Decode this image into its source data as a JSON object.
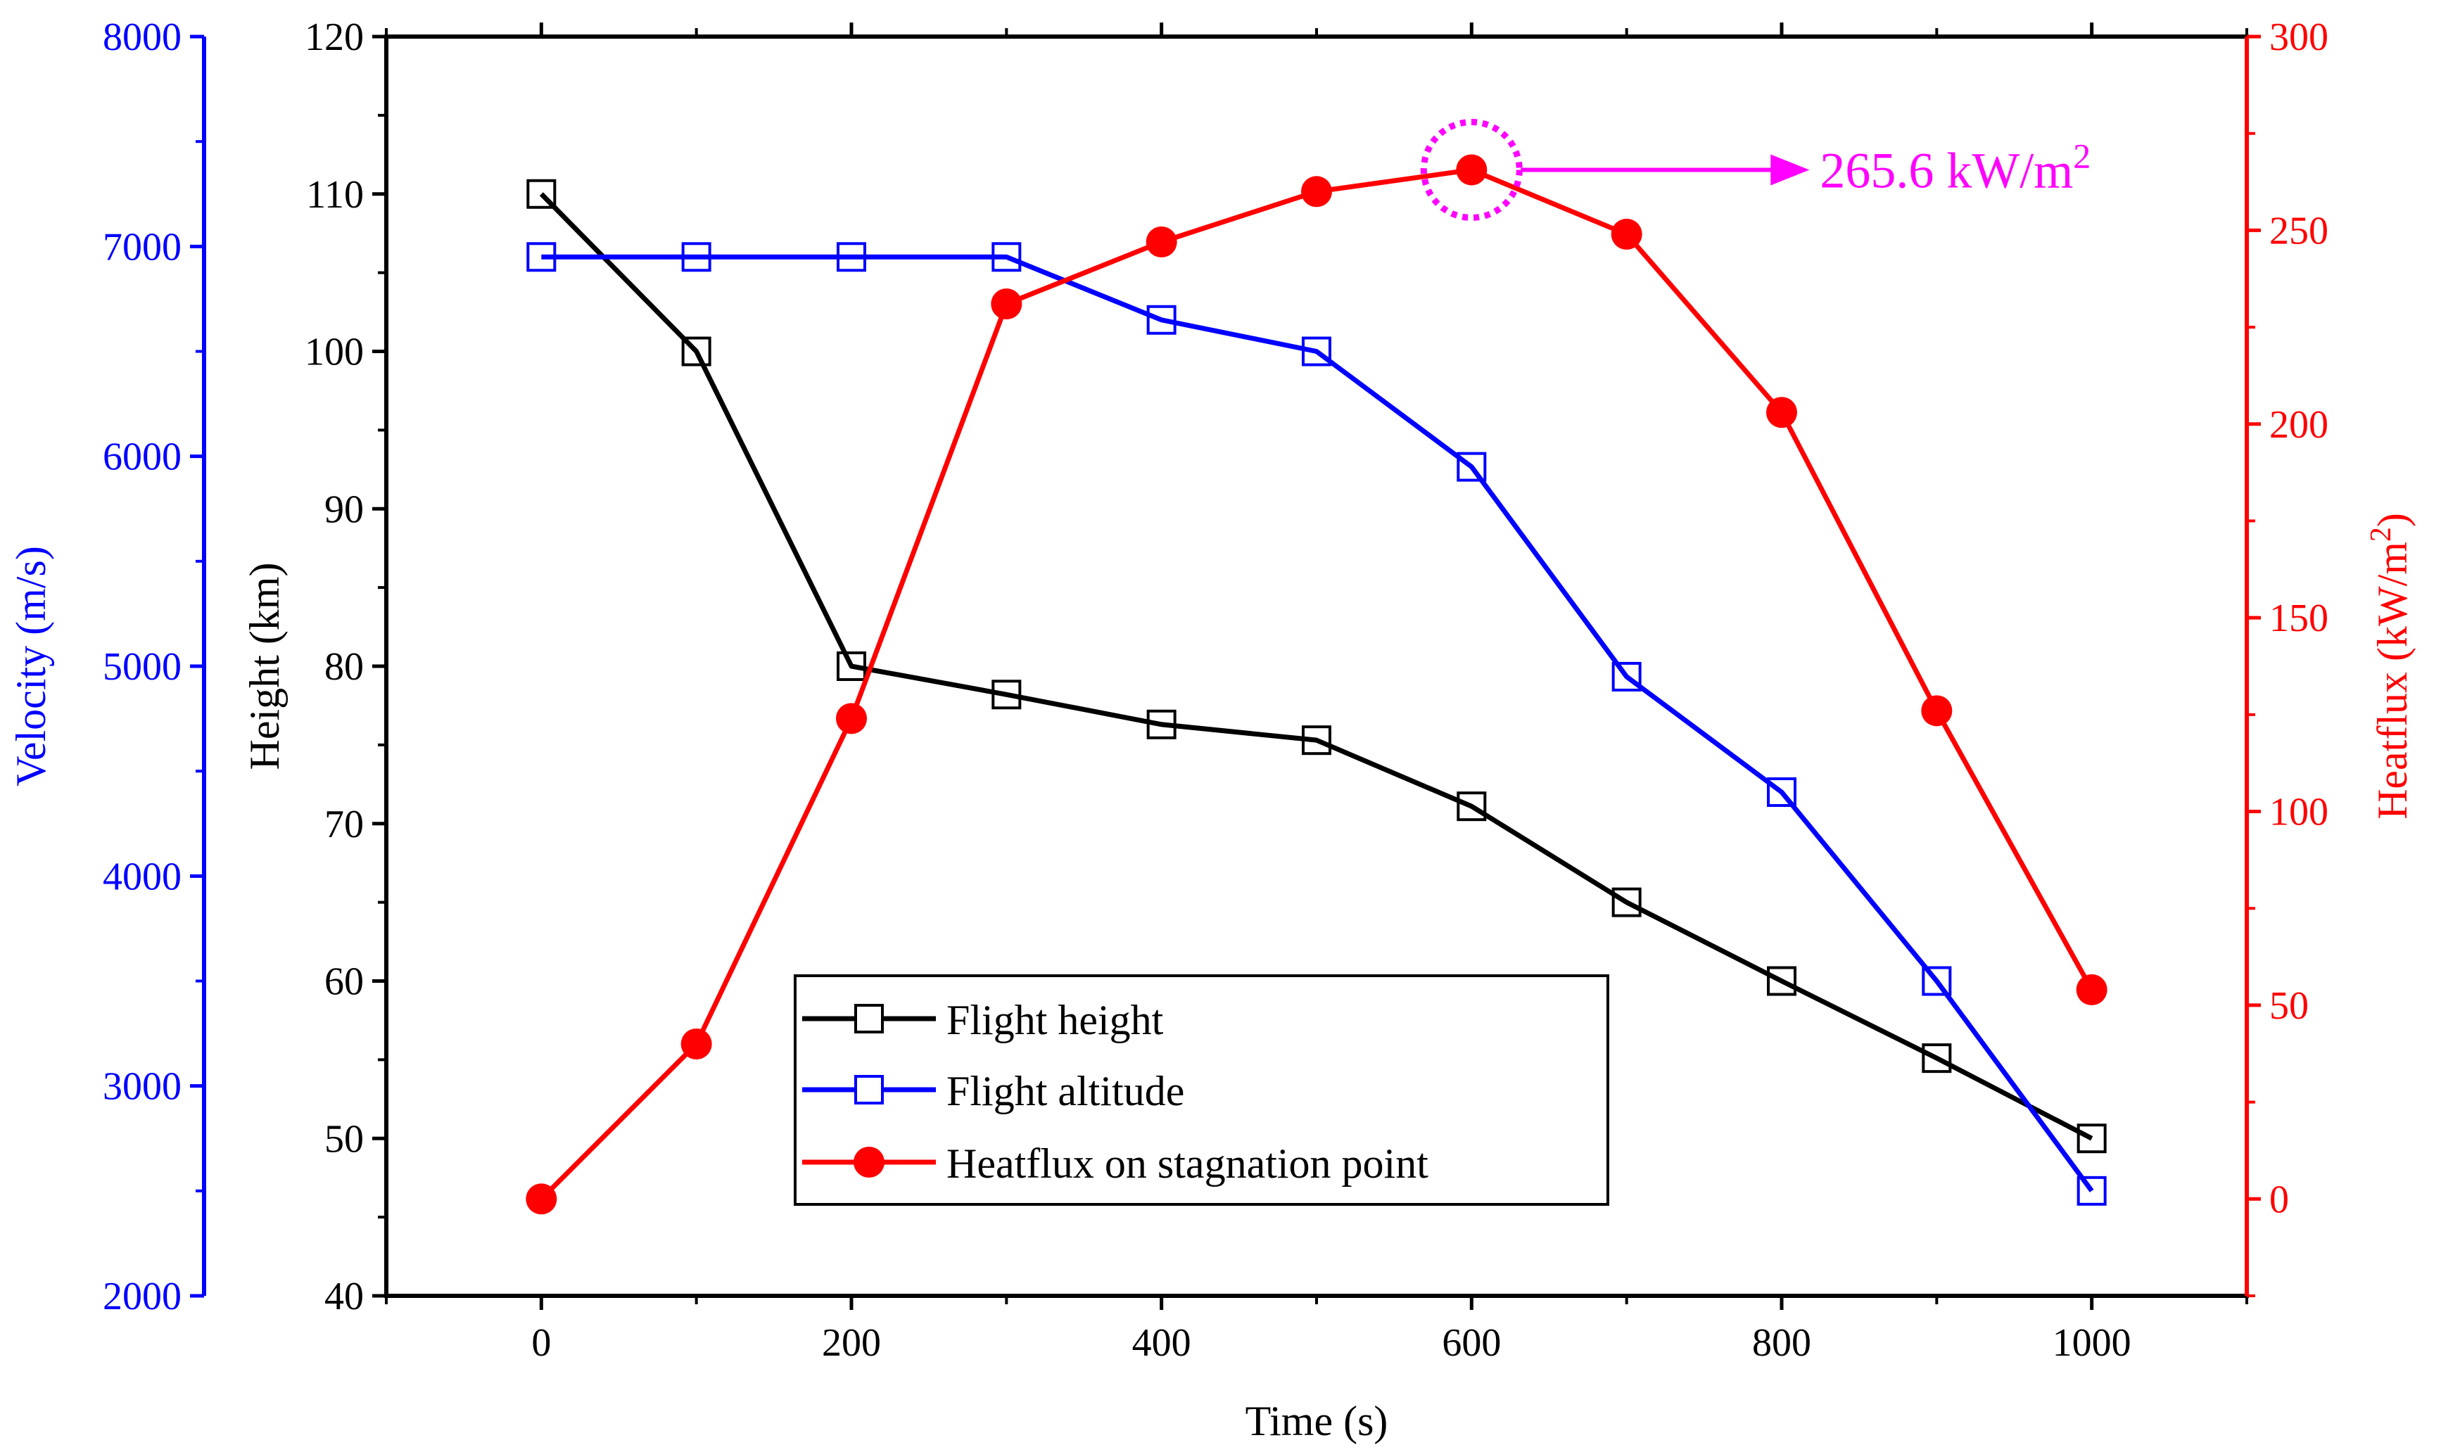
{
  "chart_data": {
    "type": "line",
    "x": [
      0,
      100,
      200,
      300,
      400,
      500,
      600,
      700,
      800,
      900,
      1000
    ],
    "xlabel": "Time (s)",
    "xlim": [
      -100,
      1100
    ],
    "xticks": [
      0,
      200,
      400,
      600,
      800,
      1000
    ],
    "xtick_labels": [
      "0",
      "200",
      "400",
      "600",
      "800",
      "1000"
    ],
    "axes": {
      "height": {
        "label": "Height (km)",
        "color": "#000000",
        "lim": [
          40,
          120
        ],
        "ticks": [
          40,
          50,
          60,
          70,
          80,
          90,
          100,
          110,
          120
        ],
        "tick_labels": [
          "40",
          "50",
          "60",
          "70",
          "80",
          "90",
          "100",
          "110",
          "120"
        ]
      },
      "velocity": {
        "label": "Velocity (m/s)",
        "color": "#0000ff",
        "lim": [
          2000,
          8000
        ],
        "ticks": [
          2000,
          3000,
          4000,
          5000,
          6000,
          7000,
          8000
        ],
        "tick_labels": [
          "2000",
          "3000",
          "4000",
          "5000",
          "6000",
          "7000",
          "8000"
        ]
      },
      "heatflux": {
        "label_main": "Heatflux (kW/m",
        "label_sup": "2",
        "label_end": ")",
        "color": "#ff0000",
        "lim": [
          -25,
          300
        ],
        "ticks": [
          0,
          50,
          100,
          150,
          200,
          250,
          300
        ],
        "tick_labels": [
          "0",
          "50",
          "100",
          "150",
          "200",
          "250",
          "300"
        ]
      }
    },
    "series": [
      {
        "name": "Flight height",
        "axis": "height",
        "color": "#000000",
        "marker": "open-square",
        "values": [
          110,
          100,
          80,
          78.2,
          76.3,
          75.3,
          71.1,
          65.0,
          60.0,
          55.1,
          50.0
        ]
      },
      {
        "name": "Flight altitude",
        "axis": "velocity",
        "color": "#0000ff",
        "marker": "open-square",
        "values": [
          6950,
          6950,
          6950,
          6950,
          6650,
          6500,
          5950,
          4950,
          4400,
          3500,
          2500
        ]
      },
      {
        "name": "Heatflux on stagnation point",
        "axis": "heatflux",
        "color": "#ff0000",
        "marker": "filled-circle",
        "values": [
          0,
          40,
          124,
          231,
          247,
          260,
          265.6,
          249,
          203,
          126,
          54
        ]
      }
    ],
    "legend_position": "lower-center",
    "annotation": {
      "text": "265.6 kW/m",
      "sup": "2",
      "x": 600,
      "y": 265.6,
      "axis": "heatflux",
      "color": "#ff00ff"
    }
  }
}
